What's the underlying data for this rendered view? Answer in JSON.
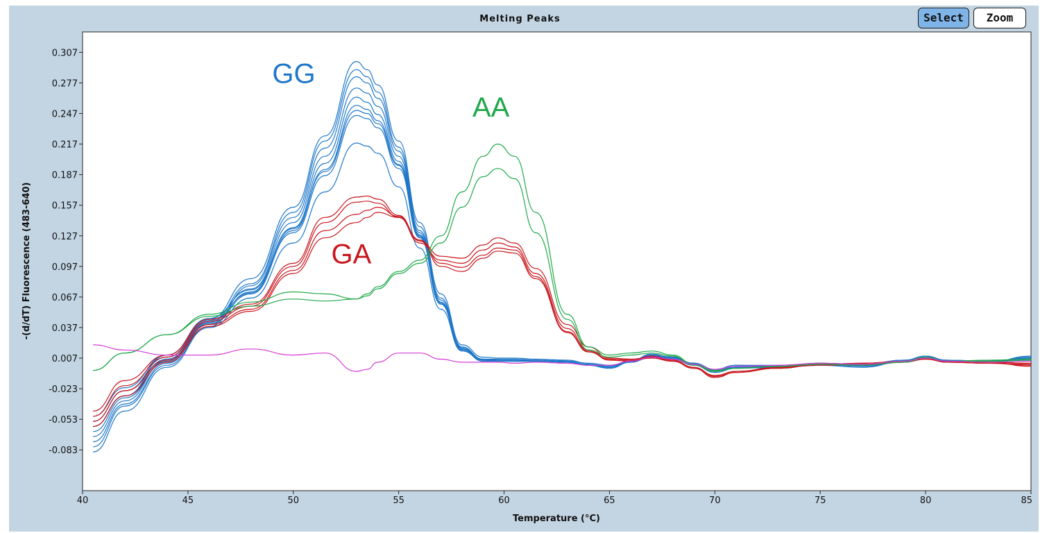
{
  "toolbar": {
    "select_label": "Select",
    "zoom_label": "Zoom"
  },
  "chart_data": {
    "type": "line",
    "title": "Melting Peaks",
    "xlabel": "Temperature (°C)",
    "ylabel": "-(d/dT) Fluorescence (483-640)",
    "xlim": [
      40,
      85
    ],
    "ylim": [
      -0.123,
      0.327
    ],
    "xticks": [
      40,
      45,
      50,
      55,
      60,
      65,
      70,
      75,
      80,
      85
    ],
    "yticks": [
      0.307,
      0.277,
      0.247,
      0.217,
      0.187,
      0.157,
      0.127,
      0.097,
      0.067,
      0.037,
      0.007,
      -0.023,
      -0.053,
      -0.083
    ],
    "ytick_labels": [
      "0.307",
      "0.277",
      "0.247",
      "0.217",
      "0.187",
      "0.157",
      "0.127",
      "0.097",
      "0.067",
      "0.037",
      "0.007",
      "-0.023",
      "-0.053",
      "-0.083"
    ],
    "grid": false,
    "colors": {
      "GG": "#1f77c8",
      "GA": "#c8161d",
      "AA": "#1fa84a",
      "blank": "#d63ad6"
    },
    "annotations": [
      {
        "text": "GG",
        "x": 49,
        "y": 0.277,
        "color": "#1f77c8"
      },
      {
        "text": "AA",
        "x": 58.5,
        "y": 0.244,
        "color": "#1fa84a"
      },
      {
        "text": "GA",
        "x": 51.8,
        "y": 0.1,
        "color": "#c8161d"
      }
    ],
    "x": [
      40.5,
      42,
      44,
      46,
      48,
      50,
      51.5,
      53,
      53.5,
      54,
      55,
      56,
      57,
      58,
      59,
      59.7,
      60.5,
      61.5,
      63,
      64,
      65,
      66,
      67,
      68,
      69,
      70,
      71,
      73,
      75,
      77,
      79,
      80,
      81,
      83,
      85
    ],
    "series": [
      {
        "group": "GG",
        "values": [
          -0.06,
          -0.03,
          0.01,
          0.045,
          0.085,
          0.155,
          0.225,
          0.298,
          0.29,
          0.275,
          0.22,
          0.14,
          0.07,
          0.02,
          0.008,
          0.007,
          0.007,
          0.006,
          0.005,
          0.002,
          0.0,
          0.004,
          0.01,
          0.008,
          0.002,
          -0.004,
          0.0,
          -0.001,
          0.002,
          0.0,
          0.005,
          0.009,
          0.005,
          0.004,
          0.006
        ]
      },
      {
        "group": "GG",
        "values": [
          -0.07,
          -0.035,
          0.005,
          0.042,
          0.08,
          0.15,
          0.22,
          0.29,
          0.283,
          0.268,
          0.214,
          0.136,
          0.066,
          0.018,
          0.006,
          0.006,
          0.006,
          0.005,
          0.004,
          0.001,
          -0.002,
          0.003,
          0.009,
          0.007,
          0.001,
          -0.006,
          -0.002,
          -0.003,
          0.001,
          -0.001,
          0.003,
          0.008,
          0.004,
          0.003,
          0.008
        ]
      },
      {
        "group": "GG",
        "values": [
          -0.08,
          -0.04,
          0.0,
          0.038,
          0.078,
          0.145,
          0.213,
          0.283,
          0.277,
          0.262,
          0.21,
          0.132,
          0.064,
          0.017,
          0.005,
          0.005,
          0.005,
          0.004,
          0.003,
          0.0,
          -0.003,
          0.003,
          0.008,
          0.006,
          0.0,
          -0.007,
          -0.003,
          -0.002,
          0.0,
          -0.002,
          0.004,
          0.007,
          0.003,
          0.004,
          0.007
        ]
      },
      {
        "group": "GG",
        "values": [
          -0.055,
          -0.025,
          0.008,
          0.044,
          0.075,
          0.14,
          0.205,
          0.272,
          0.267,
          0.254,
          0.205,
          0.13,
          0.062,
          0.016,
          0.006,
          0.005,
          0.004,
          0.005,
          0.004,
          0.001,
          -0.001,
          0.004,
          0.011,
          0.007,
          0.002,
          -0.005,
          -0.001,
          -0.001,
          0.002,
          0.001,
          0.005,
          0.009,
          0.004,
          0.003,
          0.009
        ]
      },
      {
        "group": "GG",
        "values": [
          -0.065,
          -0.032,
          0.004,
          0.041,
          0.072,
          0.135,
          0.198,
          0.263,
          0.258,
          0.246,
          0.2,
          0.128,
          0.06,
          0.015,
          0.005,
          0.004,
          0.004,
          0.004,
          0.003,
          0.0,
          -0.002,
          0.004,
          0.01,
          0.006,
          0.001,
          -0.006,
          -0.002,
          -0.002,
          0.001,
          0.0,
          0.004,
          0.008,
          0.005,
          0.004,
          0.005
        ]
      },
      {
        "group": "GG",
        "values": [
          -0.075,
          -0.038,
          0.002,
          0.04,
          0.07,
          0.132,
          0.192,
          0.255,
          0.251,
          0.24,
          0.197,
          0.126,
          0.06,
          0.015,
          0.004,
          0.004,
          0.005,
          0.004,
          0.003,
          0.001,
          -0.002,
          0.003,
          0.009,
          0.007,
          0.001,
          -0.005,
          -0.002,
          -0.002,
          0.0,
          0.0,
          0.004,
          0.007,
          0.004,
          0.003,
          0.006
        ]
      },
      {
        "group": "GG",
        "values": [
          -0.05,
          -0.022,
          0.01,
          0.046,
          0.074,
          0.134,
          0.19,
          0.25,
          0.247,
          0.237,
          0.196,
          0.127,
          0.061,
          0.016,
          0.006,
          0.005,
          0.005,
          0.005,
          0.004,
          0.001,
          -0.001,
          0.004,
          0.01,
          0.008,
          0.002,
          -0.004,
          0.0,
          0.0,
          0.002,
          0.001,
          0.005,
          0.008,
          0.005,
          0.004,
          0.007
        ]
      },
      {
        "group": "GG",
        "values": [
          -0.06,
          -0.03,
          0.006,
          0.043,
          0.071,
          0.13,
          0.186,
          0.245,
          0.242,
          0.233,
          0.193,
          0.125,
          0.06,
          0.015,
          0.005,
          0.005,
          0.004,
          0.004,
          0.003,
          0.0,
          -0.002,
          0.003,
          0.009,
          0.006,
          0.001,
          -0.006,
          -0.002,
          -0.001,
          0.001,
          0.0,
          0.004,
          0.008,
          0.004,
          0.003,
          0.006
        ]
      },
      {
        "group": "GG",
        "values": [
          -0.085,
          -0.045,
          -0.002,
          0.037,
          0.066,
          0.12,
          0.17,
          0.218,
          0.215,
          0.208,
          0.175,
          0.115,
          0.055,
          0.014,
          0.005,
          0.004,
          0.004,
          0.004,
          0.003,
          0.0,
          -0.002,
          0.003,
          0.008,
          0.006,
          0.001,
          -0.005,
          -0.002,
          -0.002,
          0.001,
          -0.001,
          0.004,
          0.007,
          0.004,
          0.003,
          0.006
        ]
      },
      {
        "group": "GA",
        "values": [
          -0.045,
          -0.015,
          0.01,
          0.045,
          0.06,
          0.1,
          0.145,
          0.165,
          0.166,
          0.163,
          0.147,
          0.122,
          0.107,
          0.105,
          0.118,
          0.125,
          0.12,
          0.095,
          0.04,
          0.018,
          0.007,
          0.006,
          0.008,
          0.005,
          -0.002,
          -0.01,
          -0.006,
          -0.003,
          0.001,
          0.002,
          0.004,
          0.007,
          0.003,
          0.002,
          0.001
        ]
      },
      {
        "group": "GA",
        "values": [
          -0.05,
          -0.02,
          0.008,
          0.043,
          0.058,
          0.097,
          0.14,
          0.16,
          0.161,
          0.159,
          0.145,
          0.12,
          0.103,
          0.1,
          0.113,
          0.12,
          0.116,
          0.09,
          0.036,
          0.015,
          0.006,
          0.005,
          0.007,
          0.004,
          -0.003,
          -0.012,
          -0.007,
          -0.002,
          0.0,
          0.001,
          0.003,
          0.006,
          0.004,
          0.003,
          -0.001
        ]
      },
      {
        "group": "GA",
        "values": [
          -0.055,
          -0.025,
          0.005,
          0.04,
          0.055,
          0.093,
          0.132,
          0.148,
          0.152,
          0.155,
          0.146,
          0.123,
          0.1,
          0.096,
          0.108,
          0.115,
          0.113,
          0.087,
          0.033,
          0.014,
          0.005,
          0.004,
          0.009,
          0.005,
          -0.002,
          -0.011,
          -0.007,
          -0.003,
          0.001,
          0.002,
          0.004,
          0.006,
          0.003,
          0.002,
          0.0
        ]
      },
      {
        "group": "GA",
        "values": [
          -0.06,
          -0.03,
          0.003,
          0.038,
          0.053,
          0.09,
          0.125,
          0.14,
          0.145,
          0.15,
          0.145,
          0.122,
          0.097,
          0.092,
          0.105,
          0.112,
          0.11,
          0.085,
          0.032,
          0.013,
          0.006,
          0.005,
          0.008,
          0.004,
          -0.003,
          -0.01,
          -0.006,
          -0.002,
          0.001,
          0.001,
          0.003,
          0.007,
          0.004,
          0.003,
          0.002
        ]
      },
      {
        "group": "AA",
        "values": [
          -0.005,
          0.012,
          0.03,
          0.048,
          0.058,
          0.065,
          0.063,
          0.065,
          0.07,
          0.077,
          0.092,
          0.103,
          0.127,
          0.17,
          0.205,
          0.217,
          0.205,
          0.15,
          0.05,
          0.018,
          0.01,
          0.012,
          0.014,
          0.01,
          0.001,
          -0.005,
          -0.003,
          -0.001,
          0.002,
          0.001,
          0.004,
          0.008,
          0.004,
          0.005,
          0.006
        ]
      },
      {
        "group": "AA",
        "values": [
          -0.005,
          0.012,
          0.03,
          0.05,
          0.062,
          0.072,
          0.07,
          0.065,
          0.068,
          0.075,
          0.09,
          0.1,
          0.12,
          0.155,
          0.185,
          0.193,
          0.183,
          0.13,
          0.045,
          0.015,
          0.008,
          0.01,
          0.012,
          0.009,
          0.0,
          -0.006,
          -0.003,
          -0.001,
          0.001,
          0.0,
          0.003,
          0.007,
          0.004,
          0.004,
          0.005
        ]
      },
      {
        "group": "blank",
        "values": [
          0.02,
          0.015,
          0.01,
          0.01,
          0.016,
          0.01,
          0.012,
          -0.006,
          -0.004,
          0.003,
          0.012,
          0.012,
          0.006,
          0.003,
          0.003,
          0.003,
          0.002,
          0.003,
          0.002,
          0.0,
          0.0,
          0.004,
          0.008,
          0.006,
          0.001,
          -0.004,
          -0.001,
          0.0,
          0.002,
          0.001,
          0.004,
          0.007,
          0.004,
          0.003,
          0.004
        ]
      }
    ]
  }
}
